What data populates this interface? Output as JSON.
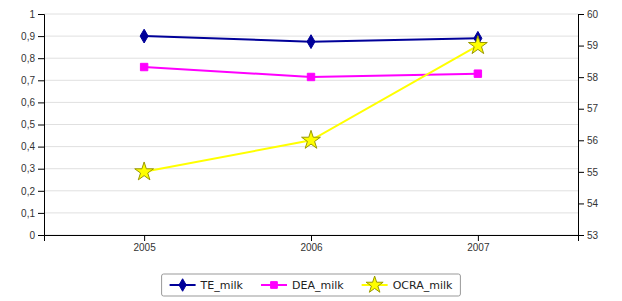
{
  "chart_data": {
    "type": "line",
    "x": [
      2005,
      2006,
      2007
    ],
    "xlim": [
      2004.4,
      2007.6
    ],
    "xticks": [
      2005,
      2006,
      2007
    ],
    "ylim": [
      0,
      1.0
    ],
    "yticks": [
      0,
      {
        "value": 0.1,
        "label": "0,1"
      },
      {
        "value": 0.2,
        "label": "0,2"
      },
      {
        "value": 0.3,
        "label": "0,3"
      },
      {
        "value": 0.4,
        "label": "0,4"
      },
      {
        "value": 0.5,
        "label": "0,5"
      },
      {
        "value": 0.6,
        "label": "0,6"
      },
      {
        "value": 0.7,
        "label": "0,7"
      },
      {
        "value": 0.8,
        "label": "0,8"
      },
      {
        "value": 0.9,
        "label": "0,9"
      },
      1
    ],
    "y2lim": [
      53,
      60
    ],
    "y2ticks": [
      53,
      54,
      55,
      56,
      57,
      58,
      59,
      60
    ],
    "grid": true,
    "legend": "bottom",
    "series": [
      {
        "name": "TE_milk",
        "color": "#000099",
        "marker": "diamond",
        "values": [
          0.9,
          0.875,
          0.89
        ]
      },
      {
        "name": "DEA_milk",
        "color": "#FF00FF",
        "marker": "square",
        "values": [
          0.76,
          0.715,
          0.73
        ]
      },
      {
        "name": "OCRA_milk",
        "color": "#FFFF00",
        "marker": "star",
        "axis": "y2",
        "values": [
          55.0,
          56.0,
          59.0
        ]
      }
    ]
  }
}
